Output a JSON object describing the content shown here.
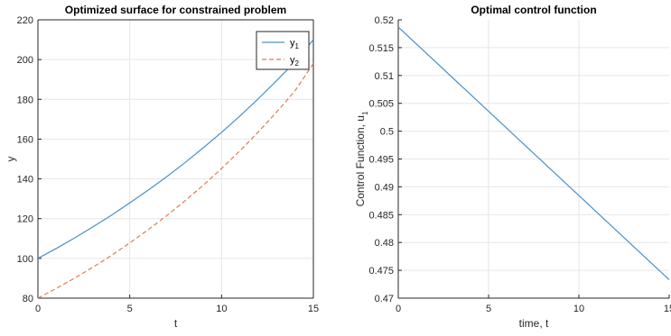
{
  "chart_data": [
    {
      "type": "line",
      "title": "Optimized surface for constrained problem",
      "xlabel": "t",
      "ylabel": "y",
      "xlim": [
        0,
        15
      ],
      "ylim": [
        80,
        220
      ],
      "xticks": [
        0,
        5,
        10,
        15
      ],
      "yticks": [
        80,
        100,
        120,
        140,
        160,
        180,
        200,
        220
      ],
      "grid": true,
      "legend_position": "top-right",
      "x": [
        0,
        1,
        2,
        3,
        4,
        5,
        6,
        7,
        8,
        9,
        10,
        11,
        12,
        13,
        14,
        15
      ],
      "series": [
        {
          "name": "y",
          "name_sub": "1",
          "style": "solid",
          "color": "#4a90c8",
          "values": [
            100,
            105.0,
            110.3,
            115.9,
            121.7,
            127.9,
            134.3,
            141.0,
            148.1,
            155.6,
            163.4,
            171.6,
            180.3,
            189.4,
            198.9,
            210
          ]
        },
        {
          "name": "y",
          "name_sub": "2",
          "style": "dashed",
          "color": "#e07b54",
          "values": [
            80,
            84.9,
            90.1,
            95.6,
            101.5,
            107.8,
            114.4,
            121.4,
            128.9,
            136.8,
            145.2,
            154.1,
            163.6,
            173.6,
            184.3,
            198
          ]
        }
      ]
    },
    {
      "type": "line",
      "title": "Optimal control function",
      "xlabel": "time, t",
      "ylabel": "Control Function, u",
      "ylabel_sub": "1",
      "xlim": [
        0,
        15
      ],
      "ylim": [
        0.47,
        0.52
      ],
      "xticks": [
        0,
        5,
        10,
        15
      ],
      "yticks": [
        0.47,
        0.475,
        0.48,
        0.485,
        0.49,
        0.495,
        0.5,
        0.505,
        0.51,
        0.515,
        0.52
      ],
      "ytick_labels": [
        "0.47",
        "0.475",
        "0.48",
        "0.485",
        "0.49",
        "0.495",
        "0.5",
        "0.505",
        "0.51",
        "0.515",
        "0.52"
      ],
      "grid": true,
      "x": [
        0,
        15
      ],
      "series": [
        {
          "style": "solid",
          "color": "#4a90c8",
          "values": [
            0.5187,
            0.4733
          ]
        }
      ]
    }
  ]
}
